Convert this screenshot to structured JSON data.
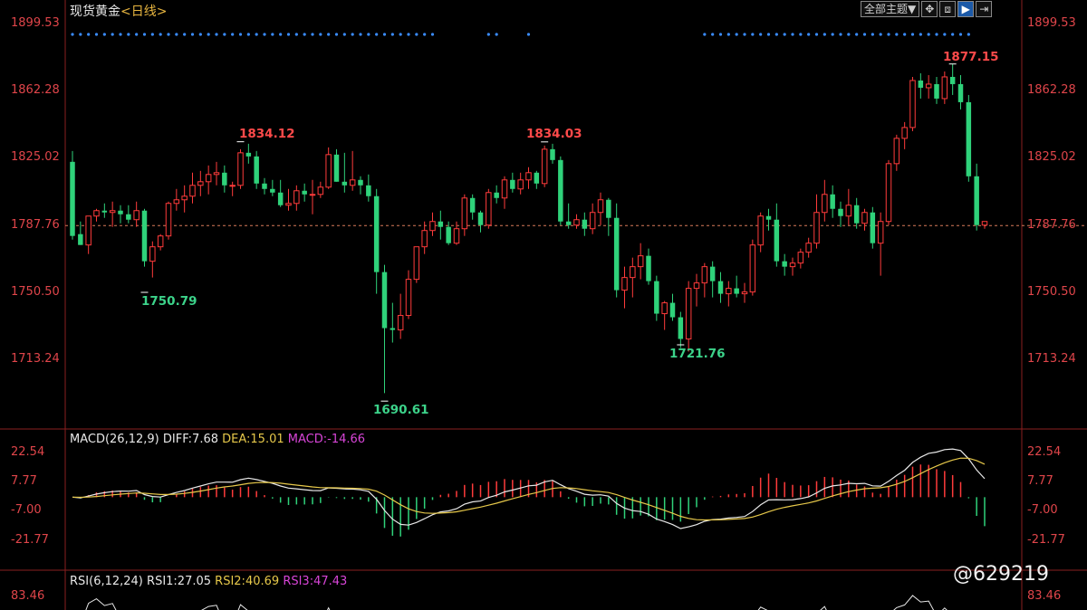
{
  "header": {
    "instrument": "现货黄金",
    "timeframe": "<日线>",
    "toolbar_theme": "全部主题▼",
    "toolbar_icons": [
      "crosshair-icon",
      "history-icon",
      "play-icon",
      "export-icon"
    ],
    "toolbar_glyphs": [
      "✥",
      "⧈",
      "▶",
      "⇥"
    ]
  },
  "price_axis": {
    "ticks": [
      "1899.53",
      "1862.28",
      "1825.02",
      "1787.76",
      "1750.50",
      "1713.24"
    ],
    "tick_values": [
      1899.53,
      1862.28,
      1825.02,
      1787.76,
      1750.5,
      1713.24
    ],
    "current_price": 1787.76
  },
  "annotations": {
    "high1": "1834.12",
    "low1": "1750.79",
    "low2": "1690.61",
    "high2": "1834.03",
    "low3": "1721.76",
    "high3": "1877.15"
  },
  "macd": {
    "label": "MACD(26,12,9)",
    "diff": "DIFF:7.68",
    "dea": "DEA:15.01",
    "macd": "MACD:-14.66",
    "ticks": [
      "22.54",
      "7.77",
      "-7.00",
      "-21.77"
    ],
    "tick_values": [
      22.54,
      7.77,
      -7.0,
      -21.77
    ]
  },
  "rsi": {
    "label": "RSI(6,12,24)",
    "rsi1": "RSI1:27.05",
    "rsi2": "RSI2:40.69",
    "rsi3": "RSI3:47.43",
    "top_tick": "83.46"
  },
  "colors": {
    "up": "#ff3b3b",
    "down": "#2fd27a",
    "axis_text": "#e0454a",
    "dash_line": "#d97a5a",
    "signal_dots": "#3a8cff"
  },
  "watermark": "@629219",
  "chart_data": {
    "type": "candlestick",
    "series": [
      {
        "name": "现货黄金",
        "ohlc": [
          [
            1823,
            1829,
            1780,
            1782
          ],
          [
            1783,
            1790,
            1777,
            1777
          ],
          [
            1777,
            1793,
            1772,
            1793
          ],
          [
            1793,
            1797,
            1790,
            1796
          ],
          [
            1796,
            1800,
            1792,
            1795
          ],
          [
            1795,
            1801,
            1787,
            1796
          ],
          [
            1796,
            1799,
            1789,
            1794
          ],
          [
            1794,
            1799,
            1789,
            1791
          ],
          [
            1791,
            1801,
            1787,
            1796
          ],
          [
            1796,
            1797,
            1765,
            1768
          ],
          [
            1768,
            1779,
            1759,
            1776
          ],
          [
            1776,
            1783,
            1774,
            1782
          ],
          [
            1782,
            1801,
            1780,
            1800
          ],
          [
            1800,
            1808,
            1796,
            1802
          ],
          [
            1802,
            1810,
            1795,
            1804
          ],
          [
            1804,
            1817,
            1800,
            1810
          ],
          [
            1810,
            1818,
            1804,
            1812
          ],
          [
            1812,
            1821,
            1805,
            1816
          ],
          [
            1816,
            1823,
            1810,
            1817
          ],
          [
            1817,
            1821,
            1806,
            1810
          ],
          [
            1810,
            1812,
            1804,
            1810
          ],
          [
            1810,
            1830,
            1808,
            1828
          ],
          [
            1828,
            1833,
            1822,
            1826
          ],
          [
            1826,
            1829,
            1808,
            1811
          ],
          [
            1811,
            1814,
            1805,
            1808
          ],
          [
            1808,
            1813,
            1804,
            1806
          ],
          [
            1806,
            1813,
            1798,
            1799
          ],
          [
            1799,
            1808,
            1796,
            1800
          ],
          [
            1800,
            1810,
            1796,
            1807
          ],
          [
            1807,
            1811,
            1801,
            1805
          ],
          [
            1805,
            1813,
            1794,
            1805
          ],
          [
            1805,
            1812,
            1803,
            1809
          ],
          [
            1809,
            1831,
            1808,
            1827
          ],
          [
            1827,
            1830,
            1812,
            1812
          ],
          [
            1812,
            1828,
            1806,
            1810
          ],
          [
            1810,
            1829,
            1807,
            1813
          ],
          [
            1813,
            1815,
            1805,
            1810
          ],
          [
            1810,
            1816,
            1801,
            1804
          ],
          [
            1804,
            1808,
            1750,
            1762
          ],
          [
            1762,
            1766,
            1695,
            1731
          ],
          [
            1731,
            1745,
            1723,
            1730
          ],
          [
            1730,
            1750,
            1725,
            1738
          ],
          [
            1738,
            1763,
            1736,
            1758
          ],
          [
            1758,
            1776,
            1756,
            1776
          ],
          [
            1776,
            1790,
            1772,
            1785
          ],
          [
            1785,
            1795,
            1782,
            1790
          ],
          [
            1790,
            1796,
            1780,
            1787
          ],
          [
            1787,
            1790,
            1777,
            1778
          ],
          [
            1778,
            1790,
            1777,
            1786
          ],
          [
            1786,
            1805,
            1782,
            1803
          ],
          [
            1803,
            1805,
            1791,
            1795
          ],
          [
            1795,
            1796,
            1784,
            1788
          ],
          [
            1788,
            1808,
            1786,
            1806
          ],
          [
            1806,
            1810,
            1800,
            1803
          ],
          [
            1803,
            1815,
            1797,
            1813
          ],
          [
            1813,
            1817,
            1806,
            1808
          ],
          [
            1808,
            1817,
            1805,
            1813
          ],
          [
            1813,
            1820,
            1808,
            1817
          ],
          [
            1817,
            1818,
            1808,
            1811
          ],
          [
            1811,
            1832,
            1809,
            1830
          ],
          [
            1830,
            1833,
            1822,
            1824
          ],
          [
            1824,
            1826,
            1788,
            1790
          ],
          [
            1790,
            1800,
            1786,
            1788
          ],
          [
            1788,
            1794,
            1786,
            1791
          ],
          [
            1791,
            1795,
            1782,
            1786
          ],
          [
            1786,
            1800,
            1783,
            1795
          ],
          [
            1795,
            1806,
            1788,
            1802
          ],
          [
            1802,
            1803,
            1782,
            1792
          ],
          [
            1792,
            1800,
            1748,
            1752
          ],
          [
            1752,
            1765,
            1742,
            1759
          ],
          [
            1759,
            1770,
            1748,
            1765
          ],
          [
            1765,
            1778,
            1758,
            1771
          ],
          [
            1771,
            1775,
            1755,
            1757
          ],
          [
            1757,
            1760,
            1735,
            1739
          ],
          [
            1739,
            1746,
            1730,
            1745
          ],
          [
            1745,
            1750,
            1735,
            1737
          ],
          [
            1737,
            1740,
            1720,
            1725
          ],
          [
            1725,
            1757,
            1718,
            1753
          ],
          [
            1753,
            1761,
            1743,
            1756
          ],
          [
            1756,
            1767,
            1748,
            1765
          ],
          [
            1765,
            1768,
            1748,
            1757
          ],
          [
            1757,
            1762,
            1745,
            1750
          ],
          [
            1750,
            1757,
            1743,
            1753
          ],
          [
            1753,
            1760,
            1748,
            1750
          ],
          [
            1750,
            1756,
            1745,
            1751
          ],
          [
            1751,
            1780,
            1749,
            1777
          ],
          [
            1777,
            1795,
            1773,
            1793
          ],
          [
            1793,
            1797,
            1785,
            1791
          ],
          [
            1791,
            1800,
            1765,
            1768
          ],
          [
            1768,
            1772,
            1760,
            1765
          ],
          [
            1765,
            1770,
            1760,
            1767
          ],
          [
            1767,
            1775,
            1764,
            1773
          ],
          [
            1773,
            1781,
            1770,
            1778
          ],
          [
            1778,
            1805,
            1775,
            1795
          ],
          [
            1795,
            1813,
            1790,
            1805
          ],
          [
            1805,
            1810,
            1792,
            1797
          ],
          [
            1797,
            1801,
            1787,
            1793
          ],
          [
            1793,
            1808,
            1788,
            1799
          ],
          [
            1799,
            1803,
            1786,
            1789
          ],
          [
            1789,
            1797,
            1785,
            1795
          ],
          [
            1795,
            1798,
            1775,
            1778
          ],
          [
            1778,
            1795,
            1760,
            1790
          ],
          [
            1790,
            1824,
            1788,
            1822
          ],
          [
            1822,
            1838,
            1818,
            1836
          ],
          [
            1836,
            1845,
            1830,
            1842
          ],
          [
            1842,
            1870,
            1840,
            1868
          ],
          [
            1868,
            1872,
            1858,
            1864
          ],
          [
            1864,
            1871,
            1858,
            1866
          ],
          [
            1866,
            1870,
            1855,
            1858
          ],
          [
            1858,
            1873,
            1855,
            1870
          ],
          [
            1870,
            1877,
            1860,
            1866
          ],
          [
            1866,
            1871,
            1852,
            1856
          ],
          [
            1856,
            1860,
            1812,
            1815
          ],
          [
            1815,
            1822,
            1785,
            1788
          ],
          [
            1788,
            1790,
            1786,
            1790
          ]
        ]
      }
    ]
  }
}
